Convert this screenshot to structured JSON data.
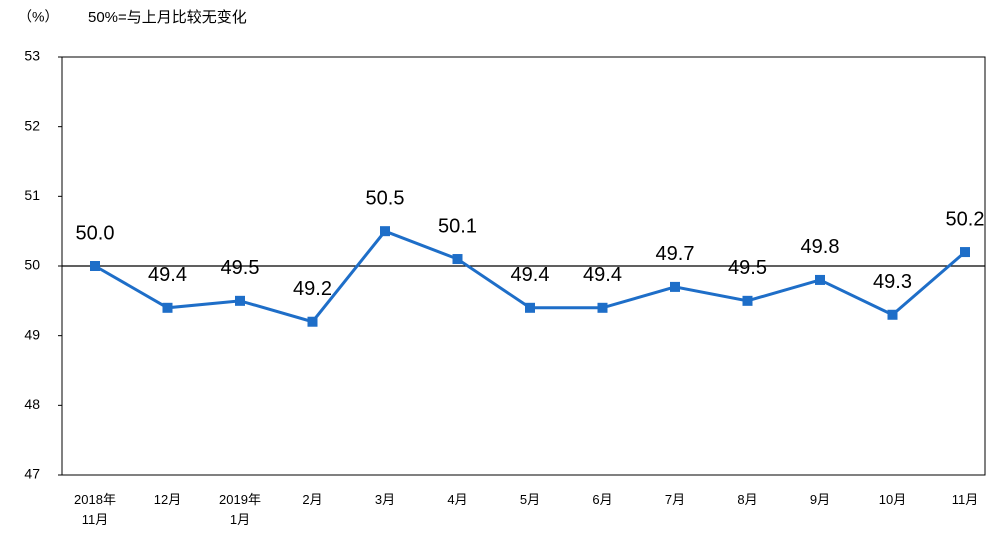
{
  "chart_data": {
    "type": "line",
    "y_unit_label": "（%）",
    "annotation": "50%=与上月比较无变化",
    "categories": [
      "2018年\n11月",
      "12月",
      "2019年\n1月",
      "2月",
      "3月",
      "4月",
      "5月",
      "6月",
      "7月",
      "8月",
      "9月",
      "10月",
      "11月"
    ],
    "series": [
      {
        "name": null,
        "color": "#1e6ec8",
        "values": [
          50.0,
          49.4,
          49.5,
          49.2,
          50.5,
          50.1,
          49.4,
          49.4,
          49.7,
          49.5,
          49.8,
          49.3,
          50.2
        ],
        "value_labels": [
          "50.0",
          "49.4",
          "49.5",
          "49.2",
          "50.5",
          "50.1",
          "49.4",
          "49.4",
          "49.7",
          "49.5",
          "49.8",
          "49.3",
          "50.2"
        ]
      }
    ],
    "ylim": [
      47,
      53
    ],
    "yticks": [
      47,
      48,
      49,
      50,
      51,
      52,
      53
    ],
    "reference_line": 50
  }
}
